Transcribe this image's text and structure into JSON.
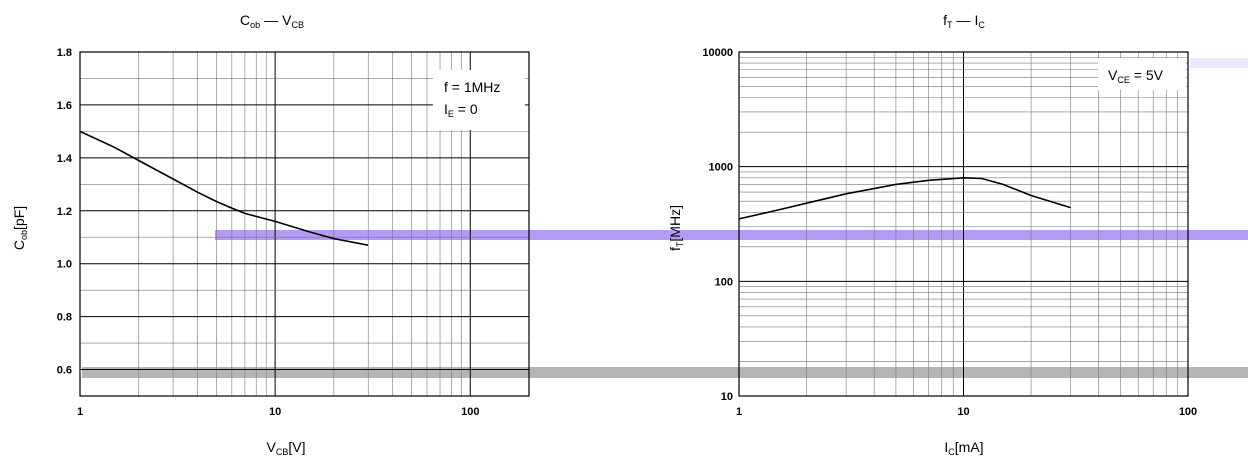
{
  "chart_data": [
    {
      "type": "line",
      "title": "Cob — VCB",
      "title_parts": {
        "main1": "C",
        "sub1": "ob",
        "dash": "—",
        "main2": "V",
        "sub2": "CB"
      },
      "xlabel": "VCB[V]",
      "xlabel_parts": {
        "main": "V",
        "sub": "CB",
        "unit": "[V]"
      },
      "ylabel": "Cob[pF]",
      "ylabel_parts": {
        "main": "C",
        "sub": "ob",
        "unit": "[pF]"
      },
      "x_scale": "log",
      "xlim": [
        1,
        200
      ],
      "ylim": [
        0.5,
        1.8
      ],
      "grid": true,
      "x_ticks": [
        "1",
        "10",
        "100"
      ],
      "y_ticks": [
        "0.6",
        "0.8",
        "1.0",
        "1.2",
        "1.4",
        "1.6",
        "1.8"
      ],
      "annotation": {
        "line1": "f = 1MHz",
        "line2_main": "I",
        "line2_sub": "E",
        "line2_rest": " = 0"
      },
      "series": [
        {
          "x": [
            1,
            1.5,
            2,
            3,
            4,
            5,
            6,
            7,
            10,
            15,
            20,
            30
          ],
          "y": [
            1.5,
            1.44,
            1.39,
            1.32,
            1.27,
            1.235,
            1.21,
            1.19,
            1.16,
            1.12,
            1.095,
            1.07
          ]
        }
      ]
    },
    {
      "type": "line",
      "title": "fT — IC",
      "title_parts": {
        "main1": "f",
        "sub1": "T",
        "dash": "—",
        "main2": "I",
        "sub2": "C"
      },
      "xlabel": "IC[mA]",
      "xlabel_parts": {
        "main": "I",
        "sub": "C",
        "unit": "[mA]"
      },
      "ylabel": "fT[MHz]",
      "ylabel_parts": {
        "main": "f",
        "sub": "T",
        "unit": "[MHz]"
      },
      "x_scale": "log",
      "y_scale": "log",
      "xlim": [
        1,
        100
      ],
      "ylim": [
        10,
        10000
      ],
      "grid": true,
      "x_ticks": [
        "1",
        "10",
        "100"
      ],
      "y_ticks": [
        "10",
        "100",
        "1000",
        "10000"
      ],
      "annotation": {
        "line1_main": "V",
        "line1_sub": "CE",
        "line1_rest": " = 5V"
      },
      "series": [
        {
          "x": [
            1,
            1.5,
            2,
            3,
            5,
            7,
            10,
            12,
            15,
            20,
            30
          ],
          "y": [
            350,
            420,
            480,
            580,
            700,
            760,
            800,
            790,
            700,
            560,
            440
          ]
        }
      ]
    }
  ]
}
